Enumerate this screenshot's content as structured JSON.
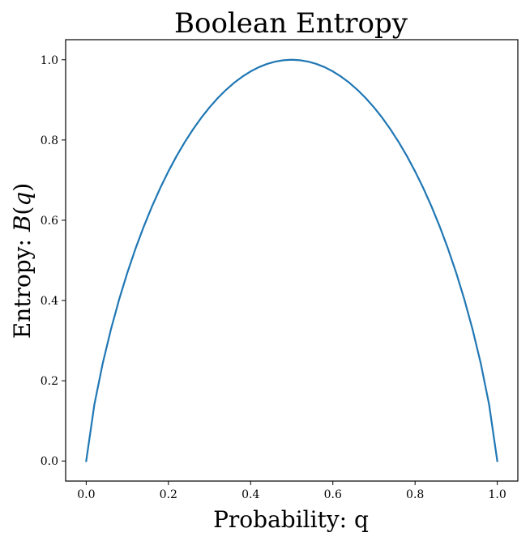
{
  "chart_data": {
    "type": "line",
    "title": "Boolean Entropy",
    "xlabel": "Probability: q",
    "ylabel_prefix": "Entropy: ",
    "ylabel_math_var": "B",
    "ylabel_math_arg": "q",
    "xlim": [
      -0.05,
      1.05
    ],
    "ylim": [
      -0.05,
      1.05
    ],
    "grid": false,
    "x_ticks": [
      0.0,
      0.2,
      0.4,
      0.6,
      0.8,
      1.0
    ],
    "x_tick_labels": [
      "0.0",
      "0.2",
      "0.4",
      "0.6",
      "0.8",
      "1.0"
    ],
    "y_ticks": [
      0.0,
      0.2,
      0.4,
      0.6,
      0.8,
      1.0
    ],
    "y_tick_labels": [
      "0.0",
      "0.2",
      "0.4",
      "0.6",
      "0.8",
      "1.0"
    ],
    "series": [
      {
        "color": "#1f77b4",
        "x": [
          0.0,
          0.02,
          0.04,
          0.06,
          0.08,
          0.1,
          0.12,
          0.14,
          0.16,
          0.18,
          0.2,
          0.22,
          0.24,
          0.26,
          0.28,
          0.3,
          0.32,
          0.34,
          0.36,
          0.38,
          0.4,
          0.42,
          0.44,
          0.46,
          0.48,
          0.5,
          0.52,
          0.54,
          0.56,
          0.58,
          0.6,
          0.62,
          0.64,
          0.66,
          0.68,
          0.7,
          0.72,
          0.74,
          0.76,
          0.78,
          0.8,
          0.82,
          0.84,
          0.86,
          0.88,
          0.9,
          0.92,
          0.94,
          0.96,
          0.98,
          1.0
        ],
        "y": [
          0.0,
          0.1414,
          0.2423,
          0.3274,
          0.4022,
          0.469,
          0.5294,
          0.5842,
          0.6343,
          0.6801,
          0.7219,
          0.7602,
          0.795,
          0.8267,
          0.8555,
          0.8813,
          0.9044,
          0.9248,
          0.9427,
          0.958,
          0.971,
          0.9815,
          0.9896,
          0.9954,
          0.9988,
          1.0,
          0.9988,
          0.9954,
          0.9896,
          0.9815,
          0.971,
          0.958,
          0.9427,
          0.9248,
          0.9044,
          0.8813,
          0.8555,
          0.8267,
          0.795,
          0.7602,
          0.7219,
          0.6801,
          0.6343,
          0.5842,
          0.5294,
          0.469,
          0.4022,
          0.3274,
          0.2423,
          0.1414,
          0.0
        ]
      }
    ]
  }
}
